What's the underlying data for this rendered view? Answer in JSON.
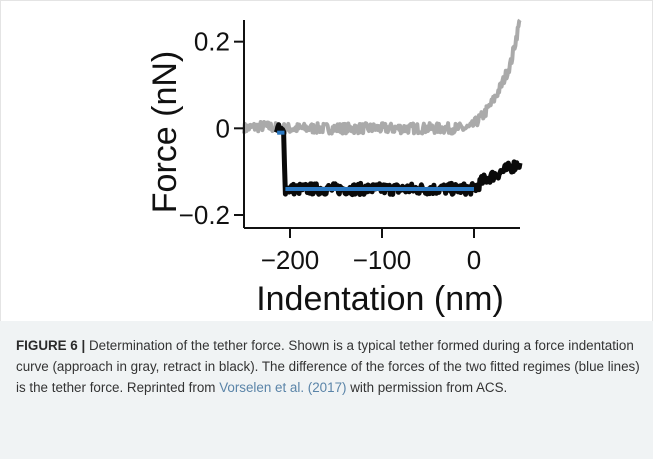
{
  "colors": {
    "approach": "#aaaaaa",
    "retract": "#0a0a0a",
    "fit": "#2a78c2",
    "caption_bg": "#f0f3f4",
    "link": "#5a84a8"
  },
  "chart_data": {
    "type": "line",
    "xlabel": "Indentation (nm)",
    "ylabel": "Force (nN)",
    "xlim": [
      -250,
      50
    ],
    "ylim": [
      -0.23,
      0.25
    ],
    "xticks": [
      -200,
      -100,
      0
    ],
    "xtick_labels": [
      "−200",
      "−100",
      "0"
    ],
    "yticks": [
      0.2,
      0,
      -0.2
    ],
    "ytick_labels": [
      "0.2",
      "0",
      "−0.2"
    ],
    "grid": false,
    "legend": "none",
    "series": [
      {
        "role": "approach",
        "color": "#aaaaaa",
        "x": [
          -250,
          -230,
          -210,
          -190,
          -150,
          -100,
          -50,
          -20,
          -10,
          -3,
          0,
          10,
          20,
          30,
          40,
          45,
          50
        ],
        "y": [
          0.0,
          0.005,
          0.0,
          0.0,
          0.0,
          0.0,
          0.0,
          0.0,
          0.0,
          0.002,
          0.01,
          0.03,
          0.06,
          0.1,
          0.15,
          0.2,
          0.25
        ]
      },
      {
        "role": "retract",
        "color": "#0a0a0a",
        "x": [
          -215,
          -207,
          -205,
          -200,
          -150,
          -100,
          -50,
          -20,
          0,
          10,
          20,
          30,
          40,
          50
        ],
        "y": [
          0.0,
          -0.01,
          -0.14,
          -0.14,
          -0.14,
          -0.14,
          -0.14,
          -0.14,
          -0.14,
          -0.12,
          -0.11,
          -0.1,
          -0.09,
          -0.08
        ]
      }
    ],
    "fits": [
      {
        "role": "baseline-fit",
        "color": "#2a78c2",
        "x": [
          -214,
          -206
        ],
        "y": [
          -0.01,
          -0.01
        ]
      },
      {
        "role": "tether-fit",
        "color": "#2a78c2",
        "x": [
          -205,
          0
        ],
        "y": [
          -0.14,
          -0.14
        ]
      }
    ]
  },
  "caption": {
    "label": "FIGURE 6 |",
    "text_before_link": " Determination of the tether force. Shown is a typical tether formed during a force indentation curve (approach in gray, retract in black). The difference of the forces of the two fitted regimes (blue lines) is the tether force. Reprinted from ",
    "link": "Vorselen et al. (2017)",
    "text_after_link": " with permission from ACS."
  }
}
